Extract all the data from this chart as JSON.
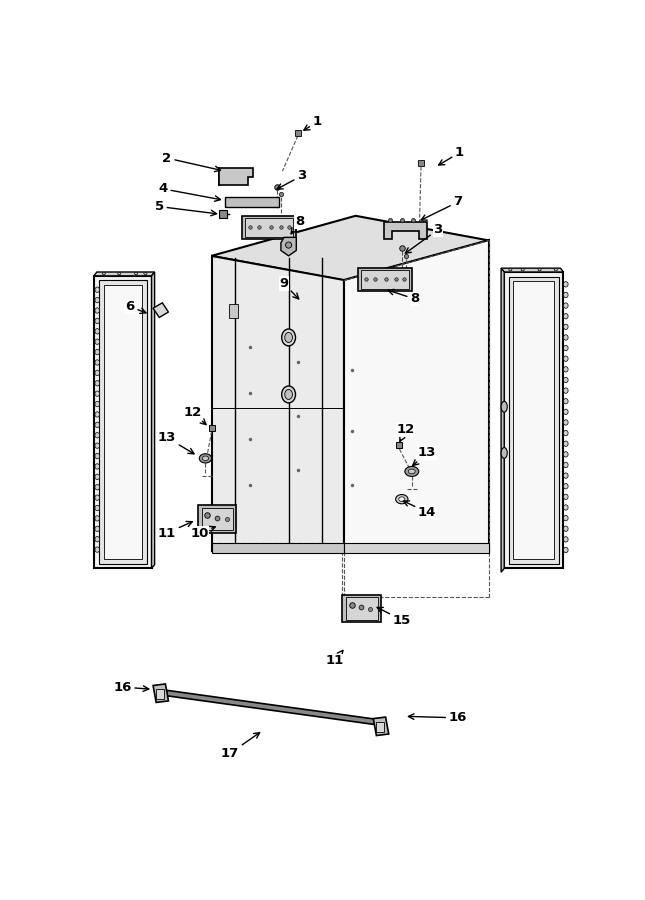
{
  "bg_color": "#ffffff",
  "lc": "#000000",
  "fc_light": "#f0f0f0",
  "fc_mid": "#d8d8d8",
  "fc_dark": "#b0b0b0",
  "fc_door": "#e8e8e8",
  "annotations": [
    [
      "1",
      305,
      18,
      283,
      32
    ],
    [
      "1",
      490,
      58,
      458,
      77
    ],
    [
      "2",
      110,
      65,
      185,
      82
    ],
    [
      "3",
      285,
      88,
      248,
      108
    ],
    [
      "3",
      462,
      158,
      415,
      192
    ],
    [
      "4",
      105,
      105,
      185,
      120
    ],
    [
      "5",
      100,
      128,
      180,
      138
    ],
    [
      "6",
      62,
      258,
      88,
      268
    ],
    [
      "7",
      488,
      122,
      435,
      148
    ],
    [
      "8",
      282,
      148,
      268,
      168
    ],
    [
      "8",
      432,
      248,
      392,
      235
    ],
    [
      "9",
      262,
      228,
      285,
      252
    ],
    [
      "10",
      152,
      552,
      178,
      542
    ],
    [
      "11",
      110,
      552,
      148,
      535
    ],
    [
      "11",
      328,
      718,
      342,
      700
    ],
    [
      "12",
      143,
      395,
      165,
      415
    ],
    [
      "12",
      420,
      418,
      410,
      438
    ],
    [
      "13",
      110,
      428,
      150,
      452
    ],
    [
      "13",
      448,
      448,
      425,
      468
    ],
    [
      "14",
      448,
      525,
      412,
      508
    ],
    [
      "15",
      415,
      665,
      378,
      646
    ],
    [
      "16",
      52,
      752,
      92,
      755
    ],
    [
      "16",
      488,
      792,
      418,
      790
    ],
    [
      "17",
      192,
      838,
      235,
      808
    ]
  ]
}
